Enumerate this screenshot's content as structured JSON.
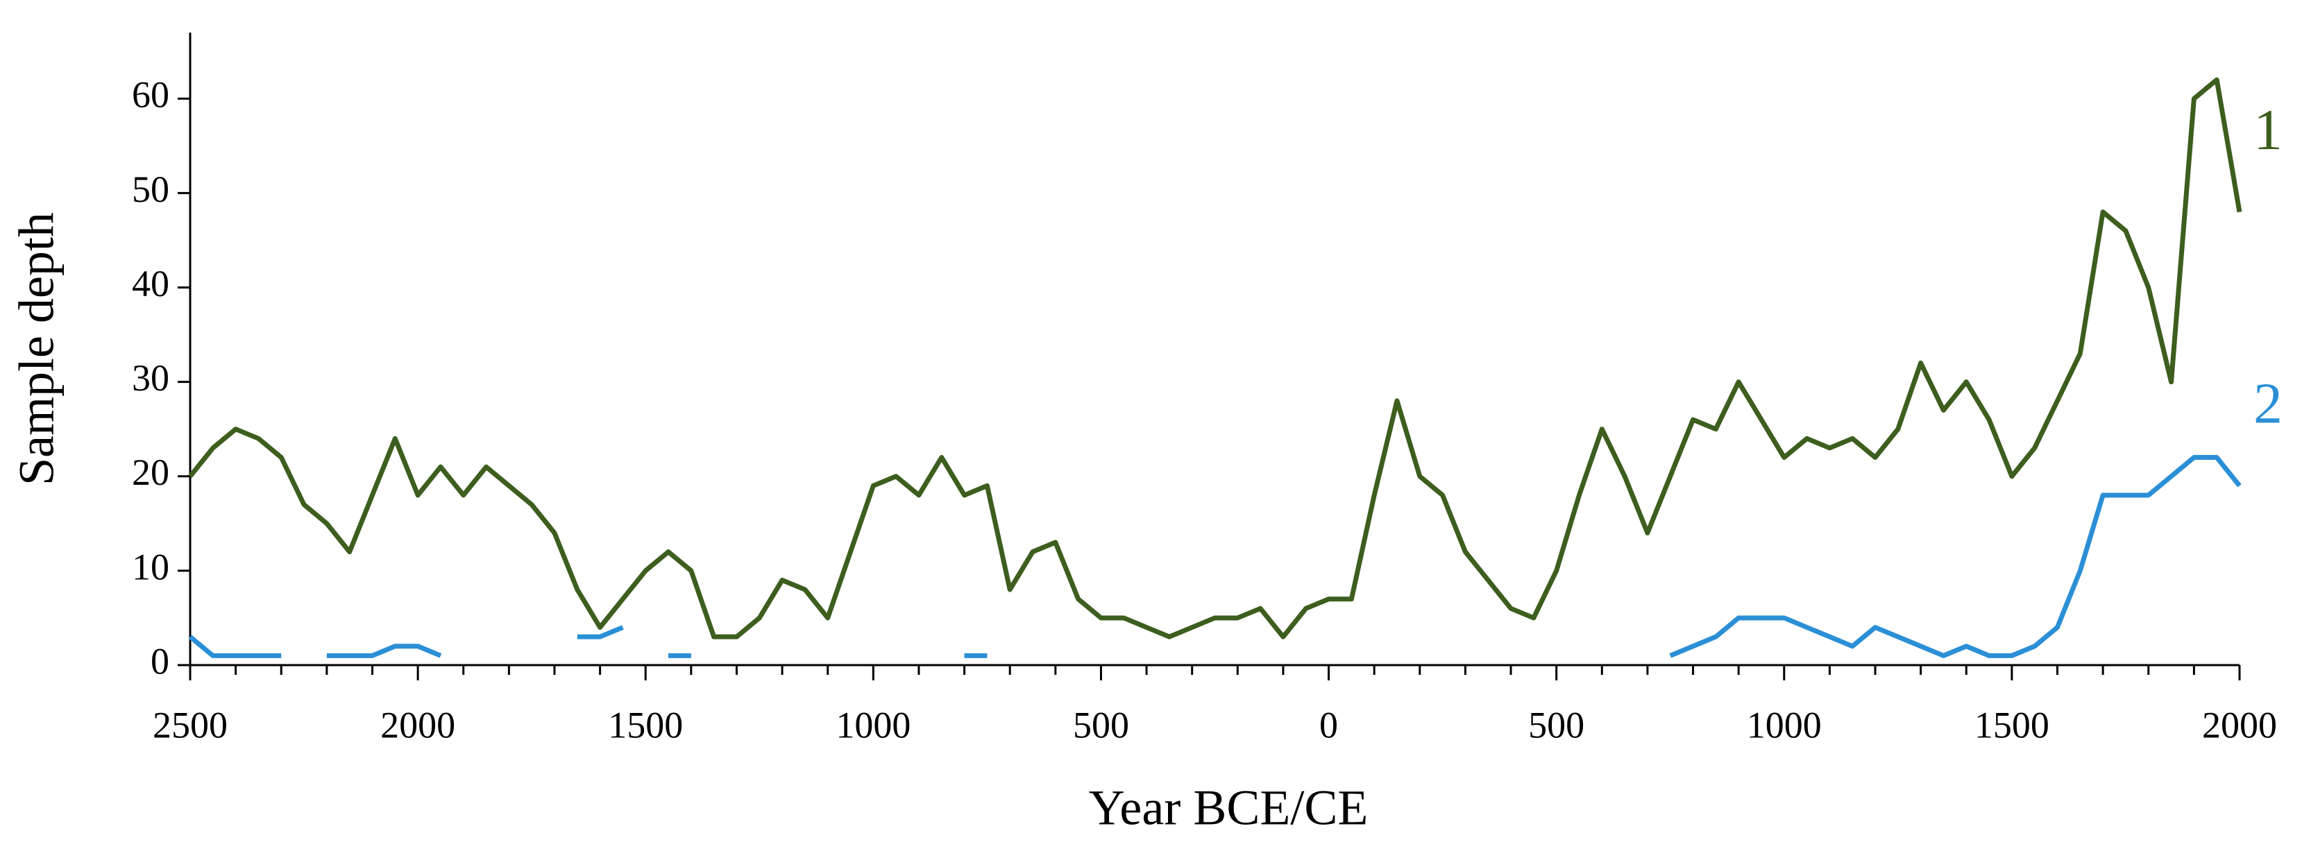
{
  "chart_data": {
    "type": "line",
    "xlabel": "Year BCE/CE",
    "ylabel": "Sample depth",
    "x": [
      -2500,
      -2450,
      -2400,
      -2350,
      -2300,
      -2250,
      -2200,
      -2150,
      -2100,
      -2050,
      -2000,
      -1950,
      -1900,
      -1850,
      -1800,
      -1750,
      -1700,
      -1650,
      -1600,
      -1550,
      -1500,
      -1450,
      -1400,
      -1350,
      -1300,
      -1250,
      -1200,
      -1150,
      -1100,
      -1050,
      -1000,
      -950,
      -900,
      -850,
      -800,
      -750,
      -700,
      -650,
      -600,
      -550,
      -500,
      -450,
      -400,
      -350,
      -300,
      -250,
      -200,
      -150,
      -100,
      -50,
      0,
      50,
      100,
      150,
      200,
      250,
      300,
      350,
      400,
      450,
      500,
      550,
      600,
      650,
      700,
      750,
      800,
      850,
      900,
      950,
      1000,
      1050,
      1100,
      1150,
      1200,
      1250,
      1300,
      1350,
      1400,
      1450,
      1500,
      1550,
      1600,
      1650,
      1700,
      1750,
      1800,
      1850,
      1900,
      1950,
      2000
    ],
    "series": [
      {
        "name": "1",
        "color": "#3d5e1e",
        "values": [
          20,
          23,
          25,
          24,
          22,
          17,
          15,
          12,
          18,
          24,
          18,
          21,
          18,
          21,
          19,
          17,
          14,
          8,
          4,
          7,
          10,
          12,
          10,
          3,
          3,
          5,
          9,
          8,
          5,
          12,
          19,
          20,
          18,
          22,
          18,
          19,
          8,
          12,
          13,
          7,
          5,
          5,
          4,
          3,
          4,
          5,
          5,
          6,
          3,
          6,
          7,
          7,
          18,
          28,
          20,
          18,
          12,
          9,
          6,
          5,
          10,
          18,
          25,
          20,
          14,
          20,
          26,
          25,
          30,
          26,
          22,
          24,
          23,
          24,
          22,
          25,
          32,
          27,
          30,
          26,
          20,
          23,
          28,
          33,
          48,
          46,
          40,
          30,
          60,
          62,
          48
        ]
      },
      {
        "name": "2",
        "color": "#2b8fd6",
        "values": [
          3,
          1,
          1,
          1,
          1,
          null,
          1,
          1,
          1,
          2,
          2,
          1,
          null,
          null,
          null,
          null,
          null,
          3,
          3,
          4,
          null,
          1,
          1,
          null,
          null,
          null,
          null,
          null,
          null,
          null,
          null,
          null,
          null,
          null,
          1,
          1,
          null,
          null,
          null,
          null,
          null,
          null,
          null,
          null,
          null,
          null,
          null,
          null,
          null,
          null,
          null,
          null,
          null,
          null,
          null,
          null,
          null,
          null,
          null,
          null,
          null,
          null,
          null,
          null,
          null,
          1,
          2,
          3,
          5,
          5,
          5,
          4,
          3,
          2,
          4,
          3,
          2,
          1,
          2,
          1,
          1,
          2,
          4,
          10,
          18,
          18,
          18,
          20,
          22,
          22,
          19
        ]
      }
    ],
    "xlim": [
      -2500,
      2000
    ],
    "xticks": [
      {
        "value": -2500,
        "label": "2500"
      },
      {
        "value": -2000,
        "label": "2000"
      },
      {
        "value": -1500,
        "label": "1500"
      },
      {
        "value": -1000,
        "label": "1000"
      },
      {
        "value": -500,
        "label": "500"
      },
      0,
      500,
      1000,
      1500,
      2000
    ],
    "ylim": [
      0,
      67
    ],
    "yticks": [
      0,
      10,
      20,
      30,
      40,
      50,
      60
    ]
  }
}
